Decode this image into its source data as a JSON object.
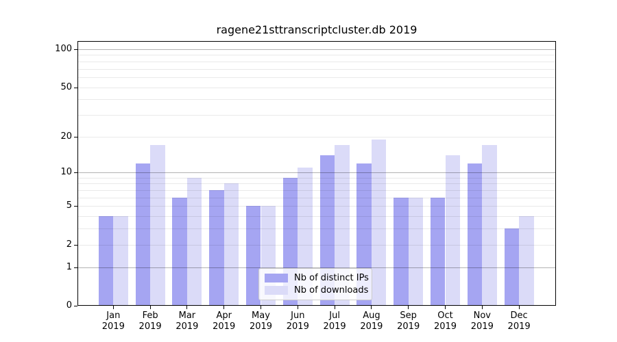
{
  "chart_data": {
    "type": "bar",
    "title": "ragene21sttranscriptcluster.db 2019",
    "categories": [
      "Jan",
      "Feb",
      "Mar",
      "Apr",
      "May",
      "Jun",
      "Jul",
      "Aug",
      "Sep",
      "Oct",
      "Nov",
      "Dec"
    ],
    "category_year": "2019",
    "series": [
      {
        "name": "Nb of distinct IPs",
        "color": "#a5a5f2",
        "values": [
          4,
          12,
          6,
          7,
          5,
          9,
          14,
          12,
          6,
          6,
          12,
          3
        ]
      },
      {
        "name": "Nb of downloads",
        "color": "#dbdbf8",
        "values": [
          4,
          17,
          9,
          8,
          5,
          11,
          17,
          19,
          6,
          14,
          17,
          4
        ]
      }
    ],
    "y_axis": {
      "scale": "log1p",
      "ticks": [
        0,
        1,
        2,
        5,
        10,
        20,
        50,
        100
      ],
      "major_gridlines": [
        1,
        10,
        100
      ],
      "minor_gridlines": [
        2,
        3,
        4,
        5,
        6,
        7,
        8,
        9,
        20,
        30,
        40,
        50,
        60,
        70,
        80,
        90
      ],
      "ylim": [
        0,
        116
      ],
      "grid": true
    },
    "legend": {
      "position": "lower center"
    }
  }
}
